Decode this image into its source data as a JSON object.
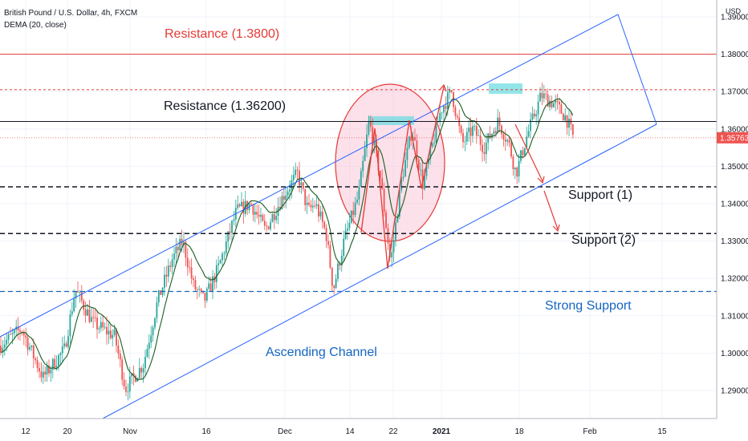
{
  "header": {
    "symbol": "British Pound / U.S. Dollar, 4h, FXCM",
    "indicator": "DEMA (20, close)"
  },
  "currency": "USD",
  "last_price_label": "1.35763",
  "colors": {
    "up": "#26a69a",
    "down": "#ef5350",
    "dema": "#1b5e20",
    "resistance_top": "#e53935",
    "resistance_mid": "#131722",
    "support": "#131722",
    "strong_support": "#1565c0",
    "channel": "#2962ff",
    "highlight": "#64dbe0",
    "circle_fill": "#f8bbd0",
    "circle_stroke": "#e53935",
    "price_label_bg": "#ef5350"
  },
  "annotations": {
    "resistance_top": "Resistance (1.3800)",
    "resistance_mid": "Resistance (1.36200)",
    "support1": "Support (1)",
    "support2": "Support (2)",
    "strong_support": "Strong Support",
    "channel": "Ascending Channel"
  },
  "chart_data": {
    "type": "candlestick",
    "symbol": "British Pound / U.S. Dollar",
    "timeframe": "4h",
    "y_axis_ticks": [
      "1.29000",
      "1.30000",
      "1.31000",
      "1.32000",
      "1.33000",
      "1.34000",
      "1.35000",
      "1.36000",
      "1.37000",
      "1.38000",
      "1.39000"
    ],
    "x_axis_ticks": [
      "12",
      "20",
      "Nov",
      "16",
      "Dec",
      "14",
      "22",
      "2021",
      "18",
      "Feb",
      "15"
    ],
    "ylim": [
      1.2825,
      1.3925
    ],
    "levels": {
      "resistance_top": 1.38,
      "resistance_mid": 1.362,
      "support1": 1.3445,
      "support2": 1.332,
      "strong_support": 1.3165,
      "dotted_resistance": 1.3705,
      "last_price": 1.35763
    },
    "path_points": [
      [
        0.0,
        1.302
      ],
      [
        0.03,
        1.3065
      ],
      [
        0.06,
        1.2935
      ],
      [
        0.09,
        1.301
      ],
      [
        0.105,
        1.317
      ],
      [
        0.13,
        1.308
      ],
      [
        0.16,
        1.3045
      ],
      [
        0.175,
        1.2905
      ],
      [
        0.2,
        1.297
      ],
      [
        0.22,
        1.314
      ],
      [
        0.24,
        1.325
      ],
      [
        0.255,
        1.33
      ],
      [
        0.27,
        1.318
      ],
      [
        0.285,
        1.314
      ],
      [
        0.305,
        1.323
      ],
      [
        0.33,
        1.338
      ],
      [
        0.35,
        1.34
      ],
      [
        0.37,
        1.333
      ],
      [
        0.395,
        1.342
      ],
      [
        0.415,
        1.348
      ],
      [
        0.43,
        1.338
      ],
      [
        0.44,
        1.34
      ],
      [
        0.455,
        1.332
      ],
      [
        0.465,
        1.317
      ],
      [
        0.48,
        1.33
      ],
      [
        0.5,
        1.342
      ],
      [
        0.515,
        1.362
      ],
      [
        0.53,
        1.348
      ],
      [
        0.545,
        1.324
      ],
      [
        0.56,
        1.346
      ],
      [
        0.575,
        1.36
      ],
      [
        0.59,
        1.345
      ],
      [
        0.615,
        1.365
      ],
      [
        0.63,
        1.37
      ],
      [
        0.645,
        1.356
      ],
      [
        0.66,
        1.36
      ],
      [
        0.675,
        1.355
      ],
      [
        0.695,
        1.362
      ],
      [
        0.71,
        1.356
      ],
      [
        0.72,
        1.348
      ],
      [
        0.735,
        1.358
      ],
      [
        0.755,
        1.369
      ],
      [
        0.775,
        1.3665
      ],
      [
        0.79,
        1.363
      ],
      [
        0.8,
        1.3576
      ]
    ]
  }
}
